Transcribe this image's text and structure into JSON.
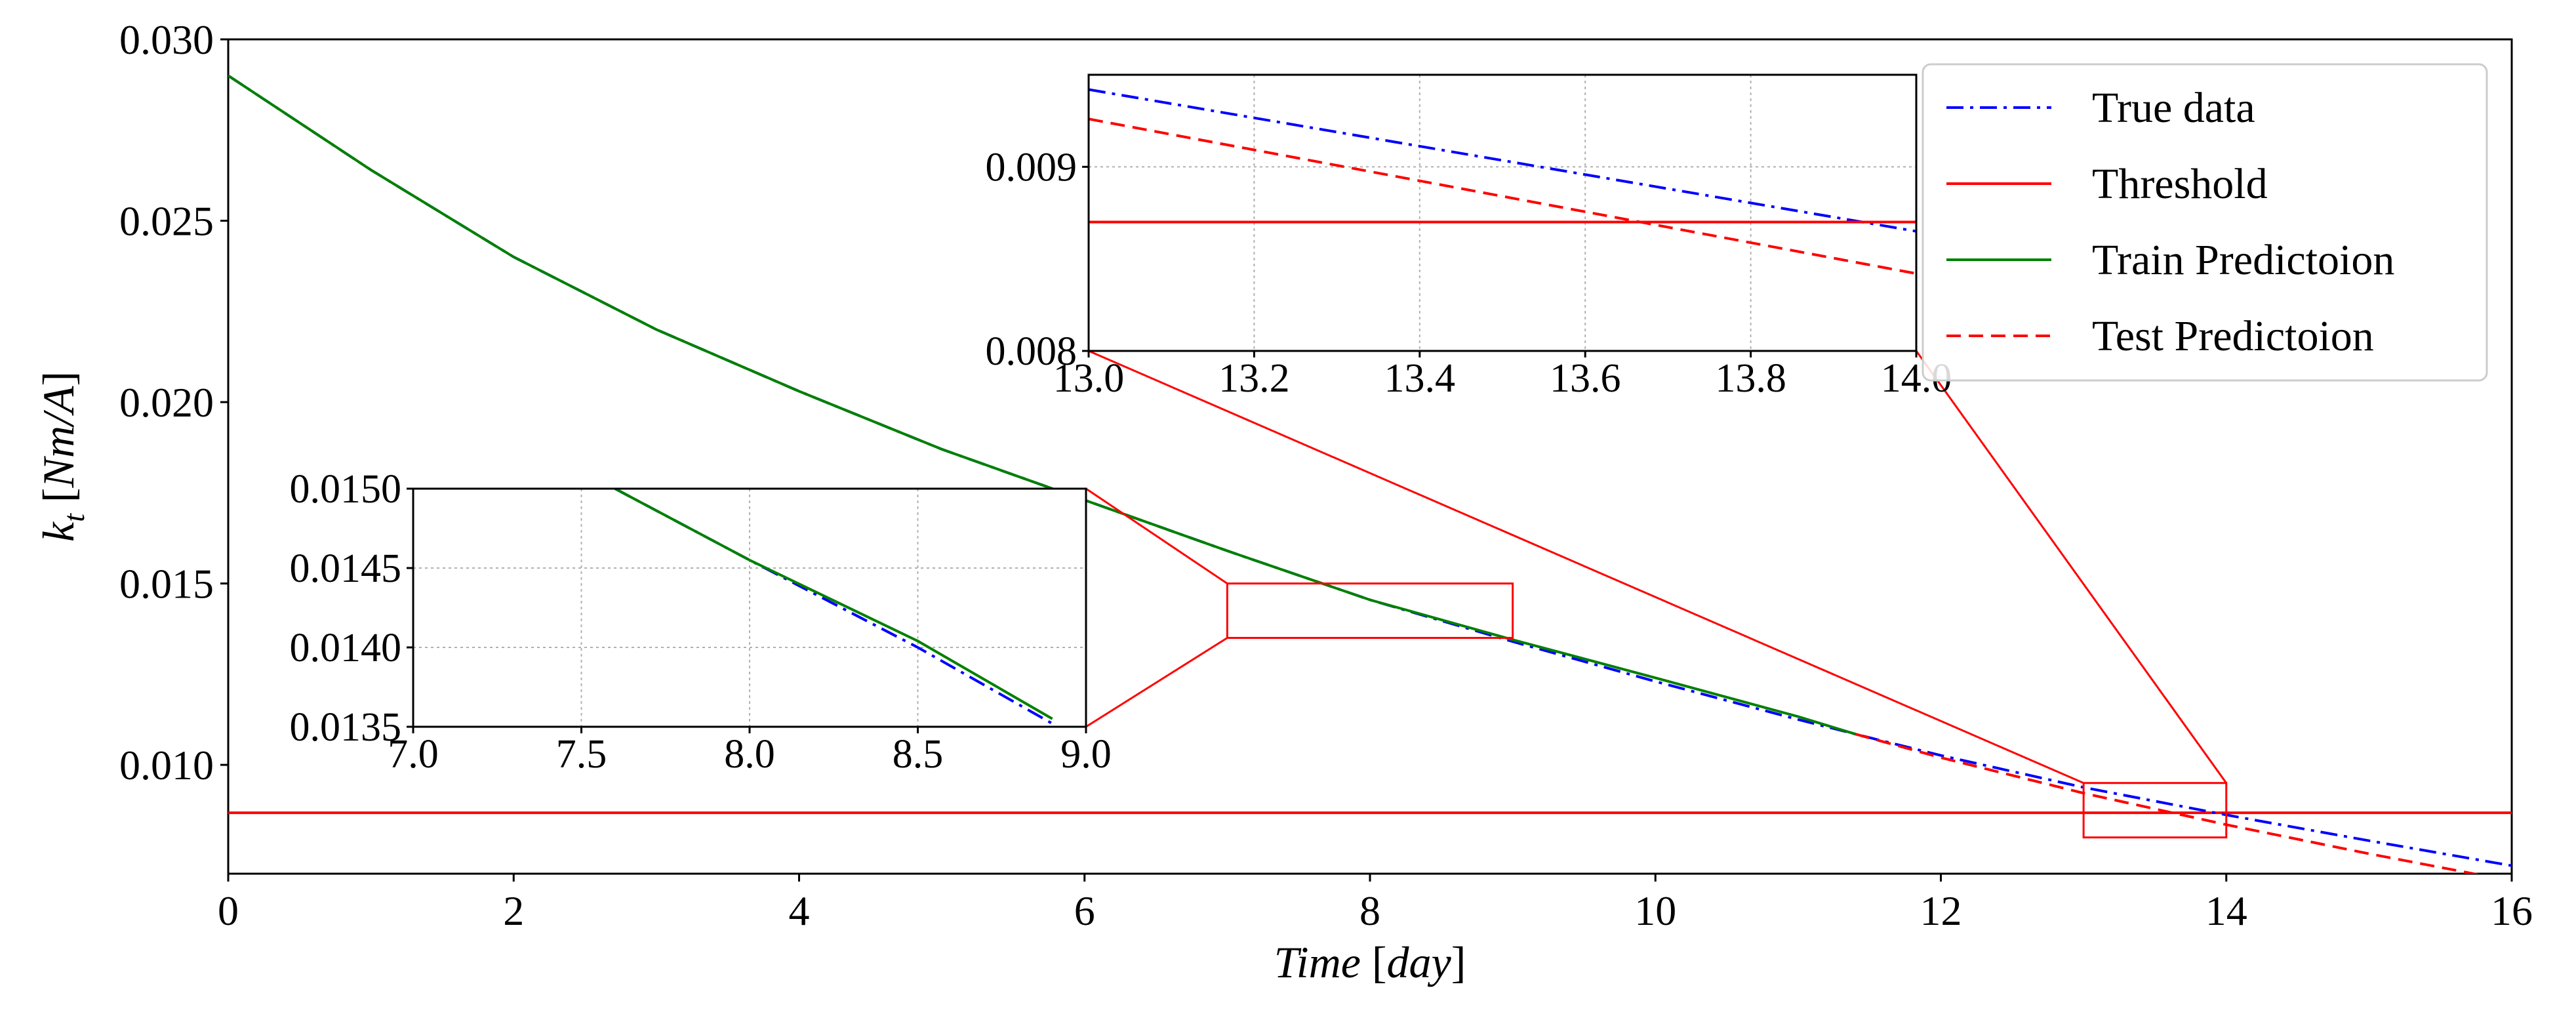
{
  "chart_data": {
    "type": "line",
    "title": "",
    "xlabel_italic": "Time",
    "xlabel_unit": "[day]",
    "ylabel_symbol": "k",
    "ylabel_sub": "t",
    "ylabel_unit": "[Nm/A]",
    "xlim": [
      0,
      16
    ],
    "ylim": [
      0.007,
      0.03
    ],
    "xticks": [
      0,
      2,
      4,
      6,
      8,
      10,
      12,
      14,
      16
    ],
    "xtick_labels": [
      "0",
      "2",
      "4",
      "6",
      "8",
      "10",
      "12",
      "14",
      "16"
    ],
    "yticks": [
      0.01,
      0.015,
      0.02,
      0.025,
      0.03
    ],
    "ytick_labels": [
      "0.010",
      "0.015",
      "0.020",
      "0.025",
      "0.030"
    ],
    "grid": false,
    "legend_position": "top-right",
    "series": [
      {
        "name": "True data",
        "color": "#0000ff",
        "style": "dashdot",
        "x": [
          0,
          1,
          2,
          3,
          4,
          5,
          6,
          7,
          8,
          9,
          10,
          11,
          11.4,
          12,
          13,
          14,
          15,
          16
        ],
        "values": [
          0.029,
          0.0264,
          0.024,
          0.022,
          0.0203,
          0.0187,
          0.0173,
          0.0159,
          0.01455,
          0.0134,
          0.0123,
          0.01125,
          0.01085,
          0.01026,
          0.00938,
          0.00862,
          0.00791,
          0.00722
        ]
      },
      {
        "name": "Threshold",
        "color": "#ff0000",
        "style": "solid",
        "x": [
          0,
          16
        ],
        "values": [
          0.00868,
          0.00868
        ]
      },
      {
        "name": "Train Predictoion",
        "color": "#008000",
        "style": "solid",
        "x": [
          0,
          1,
          2,
          3,
          4,
          5,
          6,
          7,
          8,
          9,
          10,
          11,
          11.4
        ],
        "values": [
          0.029,
          0.0264,
          0.024,
          0.022,
          0.0203,
          0.0187,
          0.0173,
          0.0159,
          0.01455,
          0.01345,
          0.0124,
          0.01133,
          0.01085
        ]
      },
      {
        "name": "Test Predictoion",
        "color": "#ff0000",
        "style": "dashed",
        "x": [
          11.4,
          12,
          13,
          14,
          15,
          16
        ],
        "values": [
          0.01085,
          0.0102,
          0.00922,
          0.00835,
          0.00755,
          0.0068
        ]
      }
    ],
    "insets": [
      {
        "name": "inset-1",
        "xlim": [
          7.0,
          9.0
        ],
        "ylim": [
          0.0135,
          0.015
        ],
        "xticks": [
          7.0,
          7.5,
          8.0,
          8.5,
          9.0
        ],
        "xtick_labels": [
          "7.0",
          "7.5",
          "8.0",
          "8.5",
          "9.0"
        ],
        "yticks": [
          0.0135,
          0.014,
          0.0145,
          0.015
        ],
        "ytick_labels": [
          "0.0135",
          "0.0140",
          "0.0145",
          "0.0150"
        ],
        "grid": true,
        "series": [
          {
            "name": "True data",
            "color": "#0000ff",
            "style": "dashdot",
            "x": [
              7.6,
              8.0,
              8.5,
              8.9
            ],
            "values": [
              0.015,
              0.01455,
              0.014,
              0.01352
            ]
          },
          {
            "name": "Train Predictoion",
            "color": "#008000",
            "style": "solid",
            "x": [
              7.6,
              8.0,
              8.5,
              8.9
            ],
            "values": [
              0.015,
              0.01455,
              0.01404,
              0.01355
            ]
          }
        ]
      },
      {
        "name": "inset-2",
        "xlim": [
          13.0,
          14.0
        ],
        "ylim": [
          0.008,
          0.0095
        ],
        "xticks": [
          13.0,
          13.2,
          13.4,
          13.6,
          13.8,
          14.0
        ],
        "xtick_labels": [
          "13.0",
          "13.2",
          "13.4",
          "13.6",
          "13.8",
          "14.0"
        ],
        "yticks": [
          0.008,
          0.009
        ],
        "ytick_labels": [
          "0.008",
          "0.009"
        ],
        "grid": true,
        "series": [
          {
            "name": "True data",
            "color": "#0000ff",
            "style": "dashdot",
            "x": [
              13.0,
              14.0
            ],
            "values": [
              0.00942,
              0.00865
            ]
          },
          {
            "name": "Threshold",
            "color": "#ff0000",
            "style": "solid",
            "x": [
              13.0,
              14.0
            ],
            "values": [
              0.0087,
              0.0087
            ]
          },
          {
            "name": "Test Predictoion",
            "color": "#ff0000",
            "style": "dashed",
            "x": [
              13.0,
              14.0
            ],
            "values": [
              0.00926,
              0.00842
            ]
          }
        ]
      }
    ],
    "zoom_boxes": [
      {
        "name": "zoom-box-1",
        "x": [
          7.0,
          9.0
        ],
        "y": [
          0.0135,
          0.015
        ]
      },
      {
        "name": "zoom-box-2",
        "x": [
          13.0,
          14.0
        ],
        "y": [
          0.008,
          0.0095
        ]
      }
    ]
  }
}
